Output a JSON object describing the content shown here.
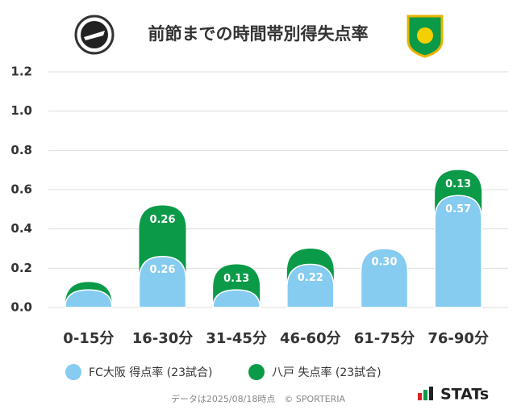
{
  "chart_data": {
    "type": "bar",
    "stacked": true,
    "title": "前節までの時間帯別得失点率",
    "categories": [
      "0-15分",
      "16-30分",
      "31-45分",
      "46-60分",
      "61-75分",
      "76-90分"
    ],
    "series": [
      {
        "name": "FC大阪 得点率 (23試合)",
        "color": "#86cbf0",
        "values": [
          0.09,
          0.26,
          0.09,
          0.22,
          0.3,
          0.57
        ],
        "value_labels": [
          null,
          "0.26",
          null,
          "0.22",
          "0.30",
          "0.57"
        ]
      },
      {
        "name": "八戸 失点率 (23試合)",
        "color": "#0a9a48",
        "values": [
          0.04,
          0.26,
          0.13,
          0.08,
          0,
          0.13
        ],
        "value_labels": [
          null,
          "0.26",
          "0.13",
          null,
          null,
          "0.13"
        ]
      }
    ],
    "ylim": [
      0,
      1.2
    ],
    "yticks": [
      {
        "value": 0,
        "label": "0.0"
      },
      0.2,
      0.4,
      0.6,
      0.8,
      {
        "value": 1,
        "label": "1.0"
      },
      1.2
    ],
    "grid": true,
    "footer": "データは2025/08/18時点　© SPORTERIA",
    "brand": "STATs"
  }
}
